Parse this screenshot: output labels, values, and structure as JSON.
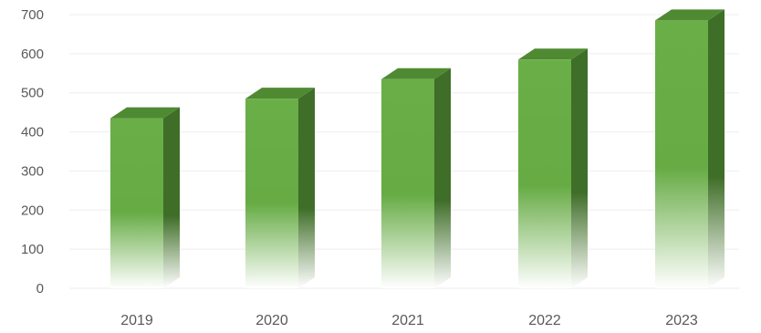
{
  "chart_data": {
    "type": "bar",
    "style": "3d-column",
    "categories": [
      "2019",
      "2020",
      "2021",
      "2022",
      "2023"
    ],
    "values": [
      435,
      485,
      535,
      585,
      685
    ],
    "ylim": [
      0,
      700
    ],
    "yticks": [
      "0",
      "100",
      "200",
      "300",
      "400",
      "500",
      "600",
      "700"
    ],
    "grid": true,
    "legend": "none",
    "colors": {
      "front_top": "#6aae48",
      "front_bottom": "#ffffff",
      "side": "#3f6e28",
      "top": "#4f8a33",
      "grid": "#ededed",
      "tick_text": "#595959"
    }
  }
}
